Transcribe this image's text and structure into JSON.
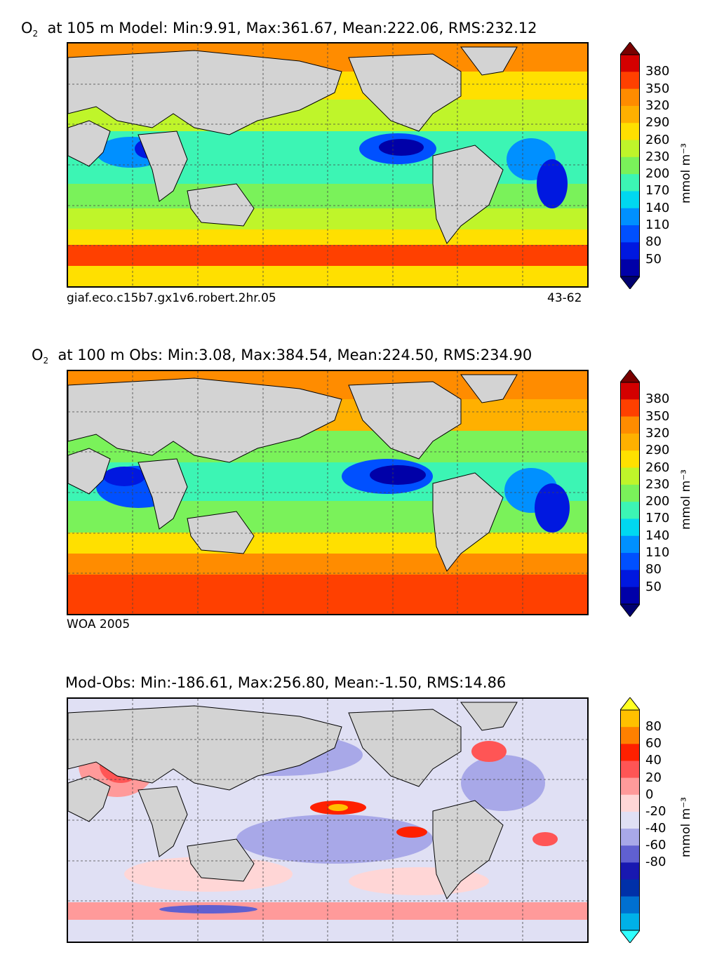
{
  "panels": [
    {
      "title_species": "O",
      "title_subscript": "2",
      "title_rest": "at 105 m Model: Min:9.91, Max:361.67, Mean:222.06, RMS:232.12",
      "caption_left": "giaf.eco.c15b7.gx1v6.robert.2hr.05",
      "caption_right": "43-62"
    },
    {
      "title_species": "O",
      "title_subscript": "2",
      "title_rest": "at 100 m Obs: Min:3.08, Max:384.54, Mean:224.50, RMS:234.90",
      "caption_left": "WOA 2005",
      "caption_right": ""
    },
    {
      "title_species": "",
      "title_subscript": "",
      "title_rest": "Mod-Obs: Min:-186.61, Max:256.80, Mean:-1.50, RMS:14.86",
      "caption_left": "",
      "caption_right": ""
    }
  ],
  "colorbars": {
    "oxygen": {
      "ticks": [
        "380",
        "350",
        "320",
        "290",
        "260",
        "230",
        "200",
        "170",
        "140",
        "110",
        "80",
        "50"
      ],
      "unit": "mmol m⁻³",
      "colors": [
        "#7a0000",
        "#d40000",
        "#ff4000",
        "#ff8c00",
        "#ffb000",
        "#ffe000",
        "#bff52a",
        "#7af25a",
        "#3cf5b4",
        "#00d8f0",
        "#0090ff",
        "#0050ff",
        "#0018e0",
        "#0000a8",
        "#000070"
      ]
    },
    "difference": {
      "ticks": [
        "80",
        "60",
        "40",
        "20",
        "0",
        "-20",
        "-40",
        "-60",
        "-80"
      ],
      "unit": "mmol m⁻³",
      "colors": [
        "#ffff20",
        "#ffc000",
        "#ff8000",
        "#ff2000",
        "#ff5555",
        "#ff9a9a",
        "#ffd6d6",
        "#e0e0f4",
        "#a8a8e8",
        "#6060d0",
        "#1818b0",
        "#0030a8",
        "#0070d0",
        "#00b0e8",
        "#30ffff"
      ]
    }
  },
  "land_color": "#d3d3d3",
  "chart_data": [
    {
      "type": "heatmap",
      "title": "O2 at 105 m Model: Min:9.91, Max:361.67, Mean:222.06, RMS:232.12",
      "variable": "Dissolved oxygen",
      "depth_m": 105,
      "source": "Model",
      "stats": {
        "min": 9.91,
        "max": 361.67,
        "mean": 222.06,
        "rms": 232.12
      },
      "color_levels": [
        50,
        80,
        110,
        140,
        170,
        200,
        230,
        260,
        290,
        320,
        350,
        380
      ],
      "unit": "mmol m⁻³"
    },
    {
      "type": "heatmap",
      "title": "O2 at 100 m Obs: Min:3.08, Max:384.54, Mean:224.50, RMS:234.90",
      "variable": "Dissolved oxygen",
      "depth_m": 100,
      "source": "Obs (WOA 2005)",
      "stats": {
        "min": 3.08,
        "max": 384.54,
        "mean": 224.5,
        "rms": 234.9
      },
      "color_levels": [
        50,
        80,
        110,
        140,
        170,
        200,
        230,
        260,
        290,
        320,
        350,
        380
      ],
      "unit": "mmol m⁻³"
    },
    {
      "type": "heatmap",
      "title": "Mod-Obs: Min:-186.61, Max:256.80, Mean:-1.50, RMS:14.86",
      "variable": "Model minus observations",
      "stats": {
        "min": -186.61,
        "max": 256.8,
        "mean": -1.5,
        "rms": 14.86
      },
      "color_levels": [
        -80,
        -60,
        -40,
        -20,
        0,
        20,
        40,
        60,
        80
      ],
      "unit": "mmol m⁻³"
    }
  ]
}
